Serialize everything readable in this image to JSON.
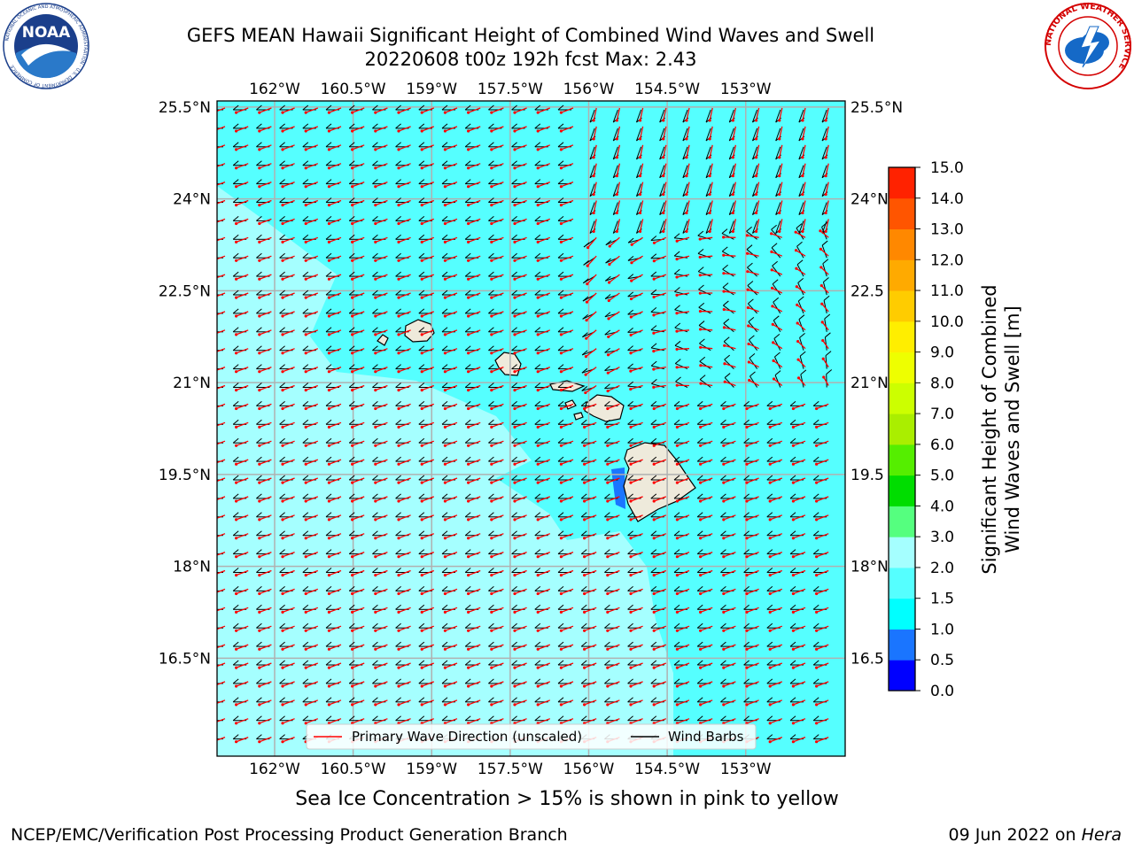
{
  "header": {
    "title_line1": "GEFS MEAN Hawaii Significant Height of Combined Wind Waves and Swell",
    "title_line2": "20220608 t00z 192h fcst   Max: 2.43"
  },
  "logos": {
    "noaa": {
      "text": "NOAA",
      "ring_text": "NATIONAL OCEANIC AND ATMOSPHERIC ADMINISTRATION · U.S. DEPARTMENT OF COMMERCE"
    },
    "nws": {
      "ring_text": "NATIONAL WEATHER SERVICE"
    }
  },
  "footer": {
    "ice_note": "Sea Ice Concentration > 15% is shown in pink to yellow",
    "branch": "NCEP/EMC/Verification Post Processing Product Generation Branch",
    "date": "09 Jun 2022 on ",
    "host": "Hera"
  },
  "colors": {
    "ocean_main": "#55ffff",
    "ocean_light": "#a5ffff",
    "ocean_high": "#00ffff",
    "land": "#eeeadb",
    "wave_arrow": "#ff0000",
    "wind_barb": "#000000",
    "grid": "#b0b0b0"
  },
  "chart_data": {
    "type": "heatmap",
    "title": "GEFS MEAN Hawaii Significant Height of Combined Wind Waves and Swell",
    "max_value": 2.43,
    "xlim": [
      -163.1,
      -151.1
    ],
    "ylim": [
      14.9,
      25.6
    ],
    "x_ticks": [
      -162,
      -160.5,
      -159,
      -157.5,
      -156,
      -154.5,
      -153
    ],
    "x_tick_labels": [
      "162°W",
      "160.5°W",
      "159°W",
      "157.5°W",
      "156°W",
      "154.5°W",
      "153°W"
    ],
    "y_ticks": [
      16.5,
      18,
      19.5,
      21,
      22.5,
      24,
      25.5
    ],
    "y_tick_labels_left": [
      "16.5°N",
      "18°N",
      "19.5°N",
      "21°N",
      "22.5°N",
      "24°N",
      "25.5°N"
    ],
    "y_tick_labels_right": [
      "16.5",
      "18°N",
      "19.5",
      "21°N",
      "22.5",
      "24°N",
      "25.5°N"
    ],
    "grid": true,
    "legend": {
      "placement": "bottom-center",
      "entries": [
        {
          "label": "Primary Wave Direction (unscaled)",
          "color": "#ff0000"
        },
        {
          "label": "Wind Barbs",
          "color": "#000000"
        }
      ]
    },
    "colorbar": {
      "label": "Significant Height of Combined Wind Waves and Swell [m]",
      "label_lines": [
        "Significant Height of Combined",
        "Wind Waves and Swell [m]"
      ],
      "ticks": [
        "0.0",
        "0.5",
        "1.0",
        "1.5",
        "2.0",
        "3.0",
        "4.0",
        "5.0",
        "6.0",
        "7.0",
        "8.0",
        "9.0",
        "10.0",
        "11.0",
        "12.0",
        "13.0",
        "14.0",
        "15.0"
      ],
      "colors": [
        "#0000ff",
        "#1a75ff",
        "#00ffff",
        "#55ffff",
        "#a5ffff",
        "#55ff7f",
        "#00dd00",
        "#55ee00",
        "#aaee00",
        "#ccff00",
        "#eeff00",
        "#ffee00",
        "#ffcc00",
        "#ffaa00",
        "#ff8800",
        "#ff5500",
        "#ff2200"
      ]
    },
    "islands": [
      "Niihau",
      "Kauai",
      "Oahu",
      "Molokai",
      "Lanai",
      "Kahoolawe",
      "Maui",
      "Hawaii"
    ],
    "vector_fields": {
      "wave_direction_field": "easterly swell, turning to northerly/southerly north-east of Hawaii",
      "wind_field": "easterly trade winds, ~15 kt"
    }
  }
}
